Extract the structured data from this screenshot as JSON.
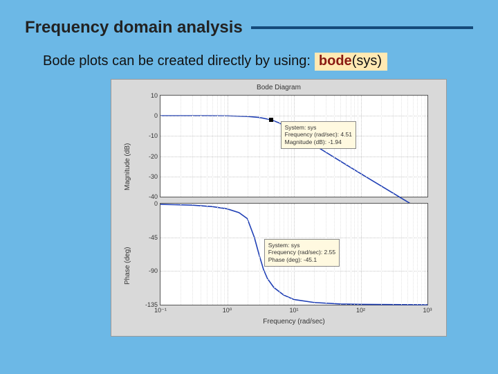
{
  "slide": {
    "title": "Frequency domain analysis",
    "rule_color": "#154a7a",
    "background": "#6cb8e6"
  },
  "subtitle": {
    "text": "Bode plots can be created directly by using:",
    "code_cmd": "bode",
    "code_args": "(sys)",
    "chip_bg": "#ffe9b3",
    "cmd_color": "#8a1a12"
  },
  "figure": {
    "title": "Bode Diagram",
    "bg": "#d9d9d9",
    "panel_bg": "#ffffff",
    "line_color": "#1f3fb5",
    "grid_color": "#c7c7c7",
    "x": {
      "label": "Frequency (rad/sec)",
      "scale": "log",
      "lim": [
        0.1,
        1000
      ],
      "ticks": [
        0.1,
        1,
        10,
        100,
        1000
      ],
      "tick_labels": [
        "10⁻¹",
        "10⁰",
        "10¹",
        "10²",
        "10³"
      ]
    },
    "mag": {
      "ylabel": "Magnitude (dB)",
      "lim": [
        -40,
        10
      ],
      "ticks": [
        -40,
        -30,
        -20,
        -10,
        0,
        10
      ],
      "curve": [
        [
          0.1,
          0
        ],
        [
          0.5,
          0
        ],
        [
          1,
          -0.04
        ],
        [
          2,
          -0.3
        ],
        [
          3,
          -0.8
        ],
        [
          4.51,
          -1.94
        ],
        [
          6,
          -3.5
        ],
        [
          8,
          -5.7
        ],
        [
          10,
          -8
        ],
        [
          20,
          -14.4
        ],
        [
          50,
          -22.5
        ],
        [
          100,
          -28.6
        ],
        [
          200,
          -34.6
        ],
        [
          500,
          -42.5
        ],
        [
          1000,
          -48.6
        ]
      ],
      "tooltip": {
        "lines": [
          "System: sys",
          "Frequency (rad/sec): 4.51",
          "Magnitude (dB): -1.94"
        ],
        "at_x": 4.51,
        "at_y": -1.94
      }
    },
    "phase": {
      "ylabel": "Phase (deg)",
      "lim": [
        -135,
        0
      ],
      "ticks": [
        -135,
        -90,
        -45,
        0
      ],
      "curve": [
        [
          0.1,
          -1
        ],
        [
          0.3,
          -2
        ],
        [
          0.6,
          -4
        ],
        [
          1,
          -7
        ],
        [
          1.5,
          -12
        ],
        [
          2,
          -20
        ],
        [
          2.55,
          -45.1
        ],
        [
          3,
          -68
        ],
        [
          3.5,
          -88
        ],
        [
          4,
          -100
        ],
        [
          5,
          -112
        ],
        [
          7,
          -122
        ],
        [
          10,
          -128
        ],
        [
          20,
          -132
        ],
        [
          50,
          -134
        ],
        [
          100,
          -134.5
        ],
        [
          1000,
          -135
        ]
      ],
      "tooltip": {
        "lines": [
          "System: sys",
          "Frequency (rad/sec): 2.55",
          "Phase (deg): -45.1"
        ],
        "at_x": 2.55,
        "at_y": -45.1
      }
    }
  }
}
